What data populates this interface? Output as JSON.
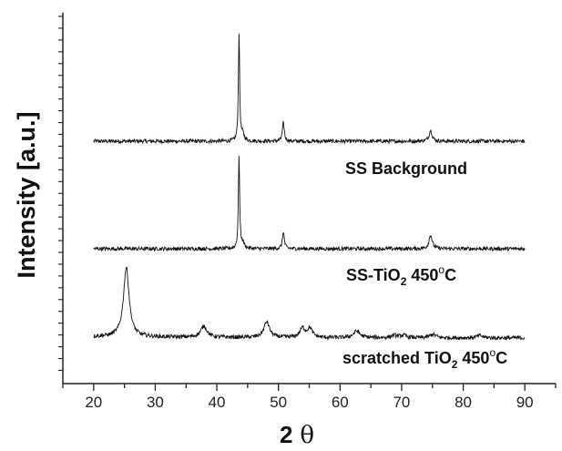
{
  "chart_data": {
    "type": "line",
    "xlabel": "2 θ",
    "xlabel_main": "2",
    "xlabel_symbol": "θ",
    "ylabel": "Intensity [a.u.]",
    "xlim": [
      15,
      95
    ],
    "x_ticks": [
      20,
      30,
      40,
      50,
      60,
      70,
      80,
      90
    ],
    "y_scale": "arbitrary units, offset traces",
    "grid": false,
    "legend": "none (labels beside traces)",
    "series": [
      {
        "name": "SS Background",
        "label_parts": [
          "SS Background"
        ],
        "baseline": 0.0,
        "peaks": [
          {
            "x": 43.6,
            "height": 1.0,
            "width": 0.12
          },
          {
            "x": 44.2,
            "height": 0.06,
            "width": 0.3
          },
          {
            "x": 50.8,
            "height": 0.17,
            "width": 0.18
          },
          {
            "x": 74.7,
            "height": 0.1,
            "width": 0.3
          }
        ]
      },
      {
        "name": "SS-TiO2 450°C",
        "label_parts": [
          "SS-TiO",
          "2",
          " 450",
          "o",
          "C"
        ],
        "baseline": 0.0,
        "peaks": [
          {
            "x": 43.6,
            "height": 0.87,
            "width": 0.12
          },
          {
            "x": 44.2,
            "height": 0.05,
            "width": 0.3
          },
          {
            "x": 50.8,
            "height": 0.16,
            "width": 0.18
          },
          {
            "x": 74.7,
            "height": 0.13,
            "width": 0.3
          }
        ]
      },
      {
        "name": "scratched TiO2 450°C",
        "label_parts": [
          "scratched TiO",
          "2",
          " 450",
          "o",
          "C"
        ],
        "baseline": 0.0,
        "peaks": [
          {
            "x": 25.3,
            "height": 0.62,
            "width": 0.55
          },
          {
            "x": 37.9,
            "height": 0.1,
            "width": 0.6
          },
          {
            "x": 48.1,
            "height": 0.14,
            "width": 0.55
          },
          {
            "x": 53.9,
            "height": 0.08,
            "width": 0.5
          },
          {
            "x": 55.1,
            "height": 0.08,
            "width": 0.5
          },
          {
            "x": 62.7,
            "height": 0.06,
            "width": 0.6
          },
          {
            "x": 68.8,
            "height": 0.02,
            "width": 0.6
          },
          {
            "x": 70.3,
            "height": 0.02,
            "width": 0.6
          },
          {
            "x": 75.1,
            "height": 0.03,
            "width": 0.6
          },
          {
            "x": 82.7,
            "height": 0.02,
            "width": 0.6
          }
        ]
      }
    ]
  }
}
